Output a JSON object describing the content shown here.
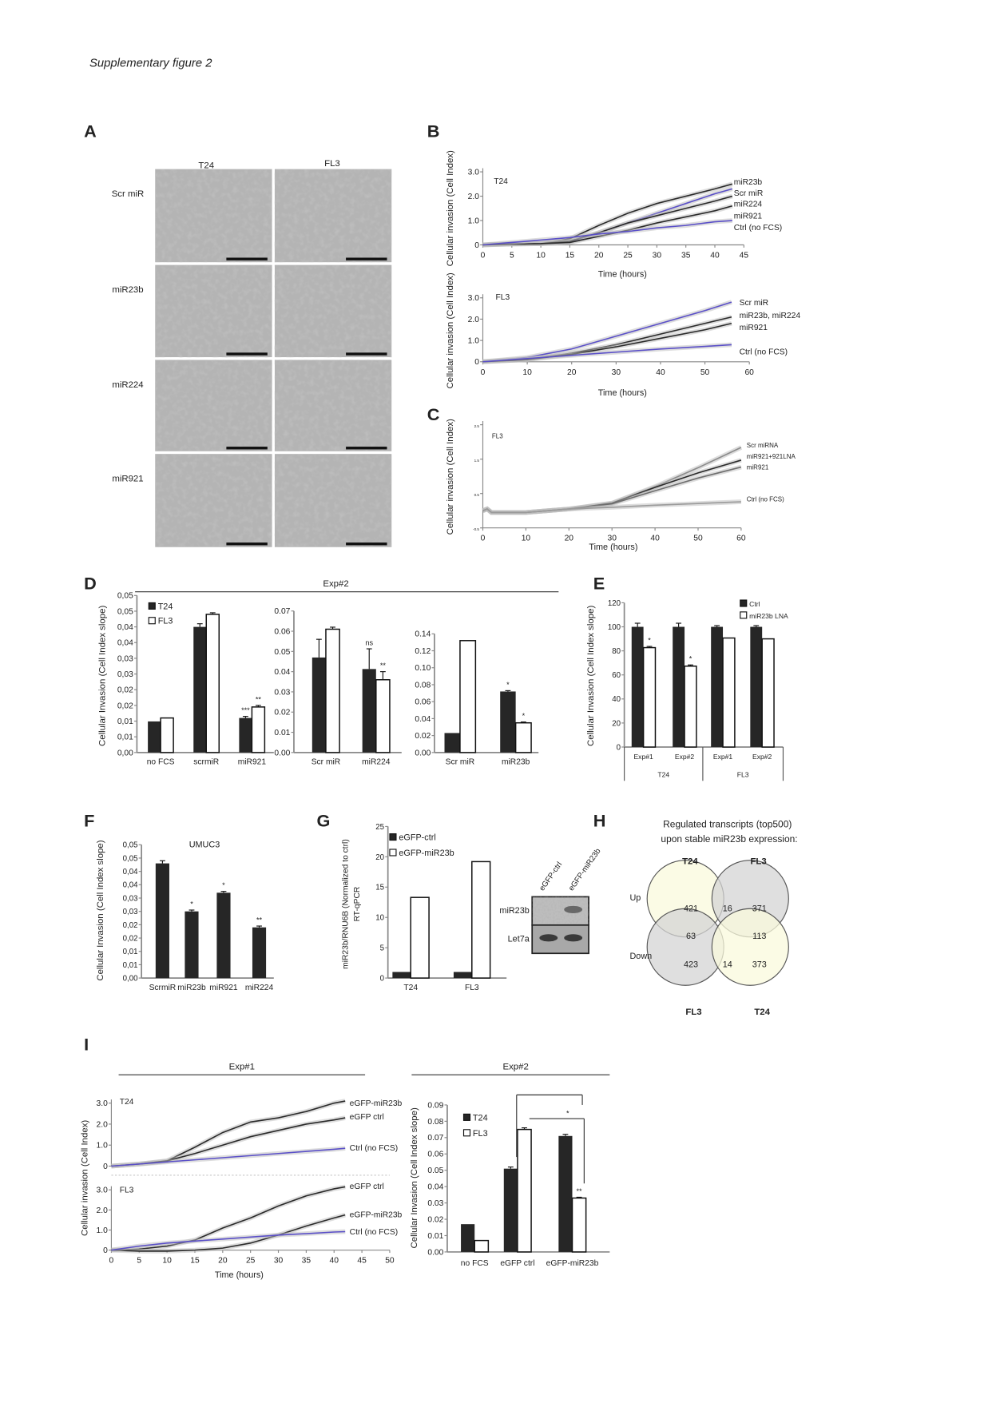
{
  "page_title": "Supplementary figure 2",
  "panel_labels": [
    "A",
    "B",
    "C",
    "D",
    "E",
    "F",
    "G",
    "H",
    "I"
  ],
  "panel_A": {
    "columns": [
      "T24",
      "FL3"
    ],
    "rows": [
      "Scr miR",
      "miR23b",
      "miR224",
      "miR921"
    ]
  },
  "panel_D": {
    "header": "Exp#2"
  },
  "panel_I": {
    "header_left": "Exp#1",
    "header_right": "Exp#2"
  },
  "panel_G_blot": {
    "lanes": [
      "eGFP-ctrl",
      "eGFP-miR23b"
    ],
    "bands": [
      "miR23b",
      "Let7a"
    ]
  },
  "panel_H": {
    "title_line1": "Regulated transcripts (top500)",
    "title_line2": "upon stable miR23b expression:",
    "top_labels": [
      "T24",
      "FL3"
    ],
    "bottom_labels": [
      "FL3",
      "T24"
    ],
    "row_labels": [
      "Up",
      "Down"
    ],
    "counts": {
      "t24_up": "421",
      "overlap_up": "16",
      "fl3_up": "371",
      "t24up_fl3down": "63",
      "fl3up_t24down": "113",
      "fl3_down": "423",
      "overlap_down": "14",
      "t24_down": "373"
    },
    "colors": {
      "T24": "#fafadc",
      "FL3": "#d4d4d4"
    }
  },
  "colors": {
    "dark_bar": "#262626",
    "light_bar": "#ffffff",
    "blue_line": "#5a4fc8",
    "black_line": "#2a2a2a",
    "gray_line": "#7d7d7d"
  },
  "chart_data": [
    {
      "id": "B-T24",
      "type": "line",
      "subtitle": "T24",
      "xlabel": "Time (hours)",
      "ylabel": "Cellular invasion (Cell Index)",
      "xlim": [
        0,
        45
      ],
      "ylim": [
        0,
        3
      ],
      "xticks": [
        0,
        5,
        10,
        15,
        20,
        25,
        30,
        35,
        40,
        45
      ],
      "xtick_labels": [
        "0",
        "5",
        "10",
        "15",
        "20",
        "25",
        "30",
        "35",
        "40",
        "45"
      ],
      "yticks": [
        0,
        1,
        2,
        3
      ],
      "ytick_labels": [
        "0",
        "1.0",
        "2.0",
        "3.0"
      ],
      "x": [
        0,
        5,
        10,
        15,
        20,
        25,
        30,
        35,
        40,
        43
      ],
      "series": [
        {
          "name": "miR23b",
          "color": "#2a2a2a",
          "values": [
            0,
            0.05,
            0.05,
            0.25,
            0.8,
            1.3,
            1.7,
            2.0,
            2.3,
            2.5
          ]
        },
        {
          "name": "Scr miR",
          "color": "#5a4fc8",
          "values": [
            0,
            0.05,
            0.05,
            0.1,
            0.5,
            0.9,
            1.3,
            1.7,
            2.1,
            2.3
          ]
        },
        {
          "name": "miR224",
          "color": "#2a2a2a",
          "values": [
            0,
            0.03,
            0.05,
            0.15,
            0.5,
            0.9,
            1.2,
            1.5,
            1.8,
            2.0
          ]
        },
        {
          "name": "miR921",
          "color": "#2a2a2a",
          "values": [
            0,
            0.03,
            0.05,
            0.1,
            0.35,
            0.6,
            0.9,
            1.15,
            1.4,
            1.6
          ]
        },
        {
          "name": "Ctrl (no FCS)",
          "color": "#5a4fc8",
          "values": [
            0,
            0.1,
            0.2,
            0.3,
            0.45,
            0.55,
            0.7,
            0.8,
            0.95,
            1.0
          ]
        }
      ]
    },
    {
      "id": "B-FL3",
      "type": "line",
      "subtitle": "FL3",
      "xlabel": "Time (hours)",
      "ylabel": "Cellular invasion (Cell Index)",
      "xlim": [
        0,
        60
      ],
      "ylim": [
        0,
        3
      ],
      "xticks": [
        0,
        10,
        20,
        30,
        40,
        50,
        60
      ],
      "xtick_labels": [
        "0",
        "10",
        "20",
        "30",
        "40",
        "50",
        "60"
      ],
      "yticks": [
        0,
        1,
        2,
        3
      ],
      "ytick_labels": [
        "0",
        "1.0",
        "2.0",
        "3.0"
      ],
      "x": [
        0,
        10,
        20,
        30,
        40,
        50,
        56
      ],
      "series": [
        {
          "name": "Scr miR",
          "color": "#5a4fc8",
          "values": [
            0,
            0.2,
            0.6,
            1.2,
            1.8,
            2.4,
            2.8
          ]
        },
        {
          "name": "miR23b, miR224",
          "color": "#2a2a2a",
          "values": [
            0,
            0.1,
            0.4,
            0.8,
            1.3,
            1.8,
            2.1
          ]
        },
        {
          "name": "miR921",
          "color": "#2a2a2a",
          "values": [
            0,
            0.1,
            0.35,
            0.7,
            1.1,
            1.5,
            1.8
          ]
        },
        {
          "name": "Ctrl (no FCS)",
          "color": "#5a4fc8",
          "values": [
            0,
            0.15,
            0.3,
            0.45,
            0.6,
            0.72,
            0.8
          ]
        }
      ]
    },
    {
      "id": "C-FL3",
      "type": "line",
      "subtitle": "FL3",
      "xlabel": "Time (hours)",
      "ylabel": "Cellular invasion (Cell Index)",
      "xlim": [
        0,
        60
      ],
      "ylim": [
        -0.5,
        2.5
      ],
      "xticks": [
        0,
        10,
        20,
        30,
        40,
        50,
        60
      ],
      "xtick_labels": [
        "0",
        "10",
        "20",
        "30",
        "40",
        "50",
        "60"
      ],
      "yticks": [
        -0.5,
        0.5,
        1.5,
        2.5
      ],
      "ytick_labels": [
        "-0.5",
        "0.5",
        "1.5",
        "2.5"
      ],
      "x": [
        0,
        1,
        2,
        10,
        20,
        30,
        40,
        50,
        60
      ],
      "series": [
        {
          "name": "Scr miRNA",
          "color": "#8a8a8a",
          "values": [
            0,
            0.05,
            -0.05,
            -0.05,
            0.05,
            0.22,
            0.7,
            1.25,
            1.84
          ]
        },
        {
          "name": "miR921+921LNA",
          "color": "#2a2a2a",
          "values": [
            0,
            0.05,
            -0.05,
            -0.05,
            0.05,
            0.22,
            0.68,
            1.1,
            1.47
          ]
        },
        {
          "name": "miR921",
          "color": "#6e6e6e",
          "values": [
            0,
            0.05,
            -0.05,
            -0.05,
            0.05,
            0.2,
            0.58,
            0.95,
            1.27
          ]
        },
        {
          "name": "Ctrl (no FCS)",
          "color": "#9a9a9a",
          "values": [
            0,
            0.05,
            -0.05,
            -0.05,
            0.05,
            0.1,
            0.16,
            0.21,
            0.26
          ]
        }
      ]
    },
    {
      "id": "D-1",
      "type": "bar",
      "ylabel": "Cellular Invasion (Cell Index slope)",
      "ylim": [
        0,
        0.05
      ],
      "yticks": [
        0,
        0.005,
        0.01,
        0.015,
        0.02,
        0.025,
        0.03,
        0.035,
        0.04,
        0.045,
        0.05
      ],
      "ytick_labels": [
        "0,00",
        "0,01",
        "0,01",
        "0,02",
        "0,02",
        "0,03",
        "0,03",
        "0,04",
        "0,04",
        "0,05",
        "0,05"
      ],
      "categories": [
        "no FCS",
        "scrmiR",
        "miR921"
      ],
      "series": [
        {
          "name": "T24",
          "fill": "dark",
          "values": [
            0.0099,
            0.04,
            0.011
          ],
          "errors": [
            0,
            0.001,
            0.0005
          ]
        },
        {
          "name": "FL3",
          "fill": "light",
          "values": [
            0.011,
            0.044,
            0.0145
          ],
          "errors": [
            0,
            0.0005,
            0.0005
          ]
        }
      ],
      "annotations": [
        {
          "category": 2,
          "series": 0,
          "text": "***"
        },
        {
          "category": 2,
          "series": 1,
          "text": "**"
        }
      ],
      "legend": "top-left"
    },
    {
      "id": "D-2",
      "type": "bar",
      "ylim": [
        0,
        0.07
      ],
      "yticks": [
        0,
        0.01,
        0.02,
        0.03,
        0.04,
        0.05,
        0.06,
        0.07
      ],
      "ytick_labels": [
        "0.00",
        "0.01",
        "0.02",
        "0.03",
        "0.04",
        "0.05",
        "0.06",
        "0.07"
      ],
      "categories": [
        "Scr miR",
        "miR224"
      ],
      "series": [
        {
          "name": "T24",
          "fill": "dark",
          "values": [
            0.047,
            0.0413
          ],
          "errors": [
            0.009,
            0.01
          ]
        },
        {
          "name": "FL3",
          "fill": "light",
          "values": [
            0.061,
            0.036
          ],
          "errors": [
            0.001,
            0.004
          ]
        }
      ],
      "annotations": [
        {
          "category": 1,
          "series": 0,
          "text": "ns"
        },
        {
          "category": 1,
          "series": 1,
          "text": "**"
        }
      ]
    },
    {
      "id": "D-3",
      "type": "bar",
      "ylim": [
        0,
        0.14
      ],
      "yticks": [
        0,
        0.02,
        0.04,
        0.06,
        0.08,
        0.1,
        0.12,
        0.14
      ],
      "ytick_labels": [
        "0.00",
        "0.02",
        "0.04",
        "0.06",
        "0.08",
        "0.10",
        "0.12",
        "0.14"
      ],
      "categories": [
        "Scr miR",
        "miR23b"
      ],
      "series": [
        {
          "name": "T24",
          "fill": "dark",
          "values": [
            0.023,
            0.072
          ],
          "errors": [
            0,
            0.001
          ]
        },
        {
          "name": "FL3",
          "fill": "light",
          "values": [
            0.132,
            0.035
          ],
          "errors": [
            0,
            0.001
          ]
        }
      ],
      "annotations": [
        {
          "category": 1,
          "series": 0,
          "text": "*"
        },
        {
          "category": 1,
          "series": 1,
          "text": "*"
        }
      ]
    },
    {
      "id": "E",
      "type": "bar",
      "ylabel": "Cellular Invasion (Cell Index slope)",
      "ylim": [
        0,
        120
      ],
      "yticks": [
        0,
        20,
        40,
        60,
        80,
        100,
        120
      ],
      "ytick_labels": [
        "0",
        "20",
        "40",
        "60",
        "80",
        "100",
        "120"
      ],
      "categories": [
        "Exp#1",
        "Exp#2",
        "Exp#1",
        "Exp#2"
      ],
      "groups": [
        "T24",
        "FL3"
      ],
      "series": [
        {
          "name": "Ctrl",
          "fill": "dark",
          "values": [
            100,
            100,
            100,
            100
          ],
          "errors": [
            3,
            3,
            1,
            1
          ]
        },
        {
          "name": "miR23b LNA",
          "fill": "light",
          "values": [
            82.7,
            67.3,
            90.7,
            90
          ],
          "errors": [
            1,
            1,
            0,
            0
          ]
        }
      ],
      "annotations": [
        {
          "category": 0,
          "series": 1,
          "text": "*"
        },
        {
          "category": 1,
          "series": 1,
          "text": "*"
        }
      ],
      "legend": "top-right"
    },
    {
      "id": "F",
      "type": "bar",
      "title": "UMUC3",
      "ylabel": "Cellular Invasion (Cell Index slope)",
      "ylim": [
        0,
        0.05
      ],
      "yticks": [
        0,
        0.005,
        0.01,
        0.015,
        0.02,
        0.025,
        0.03,
        0.035,
        0.04,
        0.045,
        0.05
      ],
      "ytick_labels": [
        "0,00",
        "0,01",
        "0,01",
        "0,02",
        "0,02",
        "0,03",
        "0,03",
        "0,04",
        "0,04",
        "0,05",
        "0,05"
      ],
      "categories": [
        "ScrmiR",
        "miR23b",
        "miR921",
        "miR224"
      ],
      "series": [
        {
          "fill": "dark",
          "values": [
            0.043,
            0.025,
            0.032,
            0.019
          ],
          "errors": [
            0.001,
            0.0005,
            0.0005,
            0.0005
          ]
        }
      ],
      "annotations": [
        {
          "category": 1,
          "series": 0,
          "text": "*"
        },
        {
          "category": 2,
          "series": 0,
          "text": "*"
        },
        {
          "category": 3,
          "series": 0,
          "text": "**"
        }
      ]
    },
    {
      "id": "G",
      "type": "bar",
      "ylabel": "miR23b/RNU6B (Normalized to ctrl)",
      "ylabel2": "RT-qPCR",
      "ylim": [
        0,
        25
      ],
      "yticks": [
        0,
        5,
        10,
        15,
        20,
        25
      ],
      "ytick_labels": [
        "0",
        "5",
        "10",
        "15",
        "20",
        "25"
      ],
      "categories": [
        "T24",
        "FL3"
      ],
      "series": [
        {
          "name": "eGFP-ctrl",
          "fill": "dark",
          "values": [
            1,
            1
          ],
          "errors": [
            0,
            0
          ]
        },
        {
          "name": "eGFP-miR23b",
          "fill": "light",
          "values": [
            13.3,
            19.2
          ],
          "errors": [
            0,
            0
          ]
        }
      ],
      "legend": "top-left"
    },
    {
      "id": "I-T24",
      "type": "line",
      "subtitle": "T24",
      "ylabel": "Cellular invasion (Cell Index)",
      "xlim": [
        0,
        50
      ],
      "ylim": [
        0,
        3
      ],
      "yticks": [
        0,
        1,
        2,
        3
      ],
      "ytick_labels": [
        "0",
        "1.0",
        "2.0",
        "3.0"
      ],
      "x": [
        0,
        5,
        10,
        15,
        20,
        25,
        30,
        35,
        40,
        42
      ],
      "series": [
        {
          "name": "eGFP-miR23b",
          "color": "#2a2a2a",
          "values": [
            0,
            0.1,
            0.25,
            0.9,
            1.6,
            2.1,
            2.3,
            2.6,
            3.0,
            3.1
          ]
        },
        {
          "name": "eGFP ctrl",
          "color": "#2a2a2a",
          "values": [
            0,
            0.1,
            0.25,
            0.6,
            1.0,
            1.4,
            1.7,
            2.0,
            2.2,
            2.3
          ]
        },
        {
          "name": "Ctrl (no FCS)",
          "color": "#5a4fc8",
          "values": [
            0,
            0.1,
            0.2,
            0.3,
            0.4,
            0.5,
            0.6,
            0.7,
            0.8,
            0.85
          ]
        }
      ]
    },
    {
      "id": "I-FL3",
      "type": "line",
      "subtitle": "FL3",
      "xlabel": "Time (hours)",
      "xlim": [
        0,
        50
      ],
      "ylim": [
        0,
        3
      ],
      "xticks": [
        0,
        5,
        10,
        15,
        20,
        25,
        30,
        35,
        40,
        45,
        50
      ],
      "xtick_labels": [
        "0",
        "5",
        "10",
        "15",
        "20",
        "25",
        "30",
        "35",
        "40",
        "45",
        "50"
      ],
      "yticks": [
        0,
        1,
        2,
        3
      ],
      "ytick_labels": [
        "0",
        "1.0",
        "2.0",
        "3.0"
      ],
      "x": [
        0,
        5,
        10,
        15,
        20,
        25,
        30,
        35,
        40,
        42
      ],
      "series": [
        {
          "name": "eGFP ctrl",
          "color": "#2a2a2a",
          "values": [
            0,
            0.05,
            0.2,
            0.5,
            1.1,
            1.6,
            2.2,
            2.7,
            3.05,
            3.15
          ]
        },
        {
          "name": "eGFP-miR23b",
          "color": "#2a2a2a",
          "values": [
            0,
            -0.05,
            -0.05,
            0,
            0.1,
            0.35,
            0.75,
            1.2,
            1.6,
            1.75
          ]
        },
        {
          "name": "Ctrl (no FCS)",
          "color": "#5a4fc8",
          "values": [
            0,
            0.2,
            0.35,
            0.45,
            0.55,
            0.65,
            0.75,
            0.82,
            0.9,
            0.92
          ]
        }
      ]
    },
    {
      "id": "I-bar",
      "type": "bar",
      "ylabel": "Cellular Invasion (Cell Index slope)",
      "ylim": [
        0,
        0.09
      ],
      "yticks": [
        0,
        0.01,
        0.02,
        0.03,
        0.04,
        0.05,
        0.06,
        0.07,
        0.08,
        0.09
      ],
      "ytick_labels": [
        "0.00",
        "0.01",
        "0.02",
        "0.03",
        "0.04",
        "0.05",
        "0.06",
        "0.07",
        "0.08",
        "0.09"
      ],
      "categories": [
        "no FCS",
        "eGFP ctrl",
        "eGFP-miR23b"
      ],
      "series": [
        {
          "name": "T24",
          "fill": "dark",
          "values": [
            0.017,
            0.051,
            0.071
          ],
          "errors": [
            0,
            0.001,
            0.001
          ]
        },
        {
          "name": "FL3",
          "fill": "light",
          "values": [
            0.007,
            0.075,
            0.033
          ],
          "errors": [
            0,
            0.001,
            0.0005
          ]
        }
      ],
      "annotations": [
        {
          "category": 2,
          "series": 1,
          "text": "**"
        }
      ],
      "brackets": [
        {
          "text": "*"
        },
        {
          "text": "*"
        }
      ],
      "legend": "top-left"
    }
  ]
}
